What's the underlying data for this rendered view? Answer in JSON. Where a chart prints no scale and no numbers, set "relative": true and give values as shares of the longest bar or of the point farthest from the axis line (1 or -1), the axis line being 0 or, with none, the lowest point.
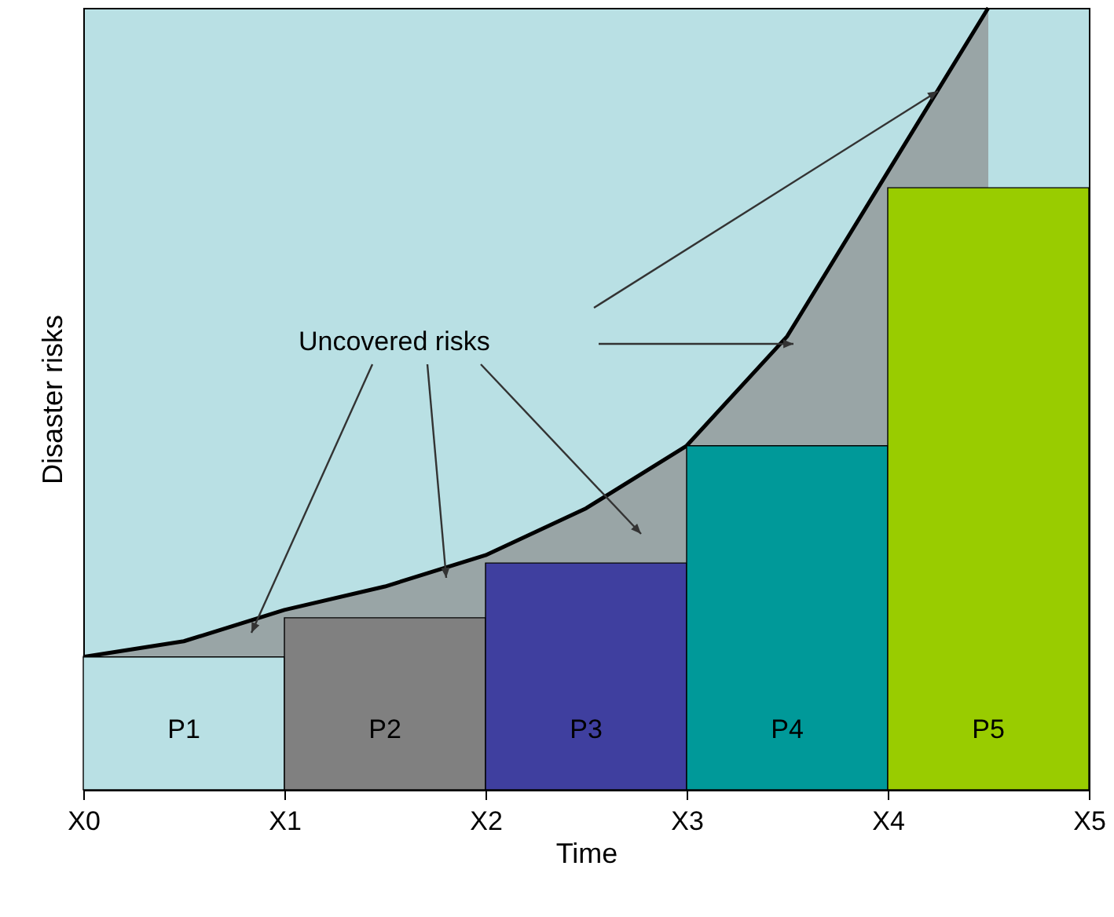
{
  "chart_data": {
    "type": "bar",
    "relative": true,
    "xlabel": "Time",
    "ylabel": "Disaster risks",
    "annotations": [
      "Uncovered risks",
      "P1",
      "P2",
      "P3",
      "P4",
      "P5"
    ],
    "categories": [
      "X0",
      null,
      "X1",
      null,
      "X2",
      null,
      "X3",
      null,
      "X4",
      null,
      "X5"
    ],
    "series": [
      {
        "type": "area",
        "color": "#8c8c8c",
        "values": [
          0.17,
          0.19,
          0.23,
          0.26,
          0.3,
          0.36,
          0.44,
          0.58,
          0.79,
          1.0,
          null
        ]
      },
      {
        "values": [
          null,
          0.17,
          null,
          0.22,
          null,
          0.29,
          null,
          0.44,
          null,
          0.77,
          null
        ],
        "colors": [
          null,
          "#b9e0e4",
          null,
          "#808080",
          null,
          "#3f3f9f",
          null,
          "#009999",
          null,
          "#99cc00",
          null
        ]
      }
    ]
  }
}
